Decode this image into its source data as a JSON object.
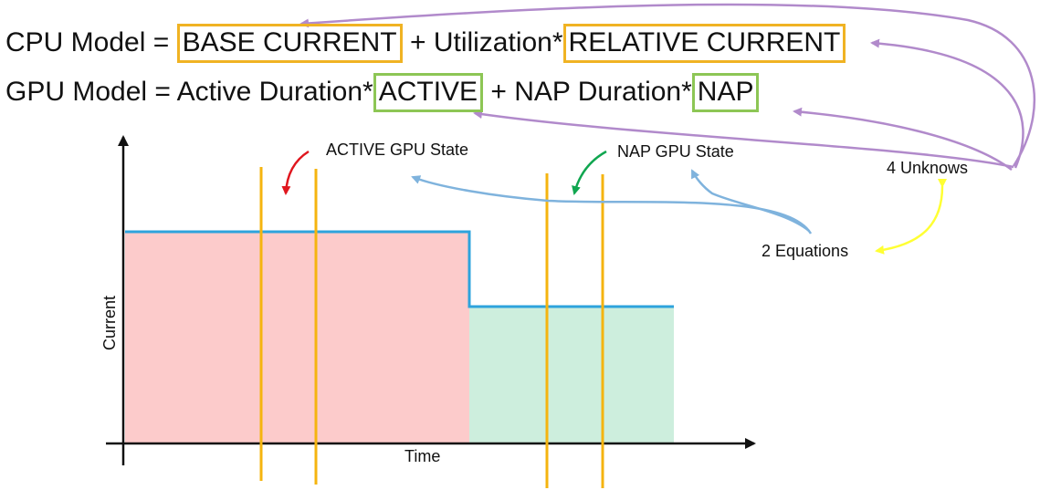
{
  "equations": {
    "cpu": {
      "prefix": "CPU Model = ",
      "term1": "BASE CURRENT",
      "middle": " + Utilization*",
      "term2": "RELATIVE CURRENT"
    },
    "gpu": {
      "prefix": "GPU Model = Active Duration*",
      "term1": "ACTIVE",
      "middle": " + NAP Duration*",
      "term2": "NAP"
    }
  },
  "annotations": {
    "active_state": "ACTIVE GPU State",
    "nap_state": "NAP GPU State",
    "unknowns": "4 Unknows",
    "equations": "2 Equations"
  },
  "axes": {
    "x_label": "Time",
    "y_label": "Current"
  },
  "colors": {
    "cpu_box": "#f0b323",
    "gpu_box": "#8dc655",
    "active_fill": "#fccbcb",
    "nap_fill": "#cdeedd",
    "current_line": "#2ea3dc",
    "sample_lines": "#f5b40f",
    "arrow_purple": "#b18acb",
    "arrow_blue": "#7fb3dd",
    "arrow_red": "#e0161e",
    "arrow_green": "#10a650",
    "arrow_yellow": "#ffff33"
  }
}
